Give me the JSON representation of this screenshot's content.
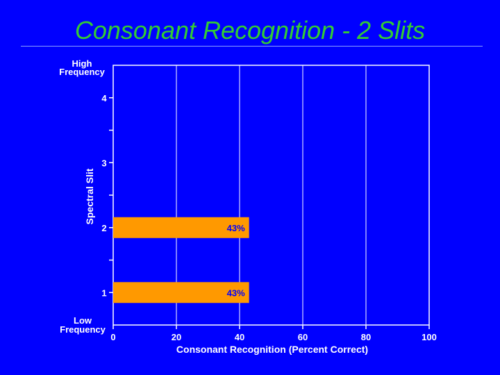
{
  "slide": {
    "title": "Consonant Recognition - 2 Slits"
  },
  "colors": {
    "background": "#0000ff",
    "title": "#33cc33",
    "bar": "#ff9900",
    "bar_label": "#0000ff",
    "axis_text": "#ffffff"
  },
  "chart_data": {
    "type": "bar",
    "orientation": "horizontal",
    "categories": [
      "1",
      "2",
      "3",
      "4"
    ],
    "values": [
      43,
      43,
      null,
      null
    ],
    "data_labels": [
      "43%",
      "43%",
      "",
      ""
    ],
    "xlabel": "Consonant Recognition (Percent Correct)",
    "ylabel": "Spectral Slit",
    "y_top_label": [
      "High",
      "Frequency"
    ],
    "y_bottom_label": [
      "Low",
      "Frequency"
    ],
    "xlim": [
      0,
      100
    ],
    "x_ticks": [
      0,
      20,
      40,
      60,
      80,
      100
    ],
    "grid": "vertical"
  }
}
